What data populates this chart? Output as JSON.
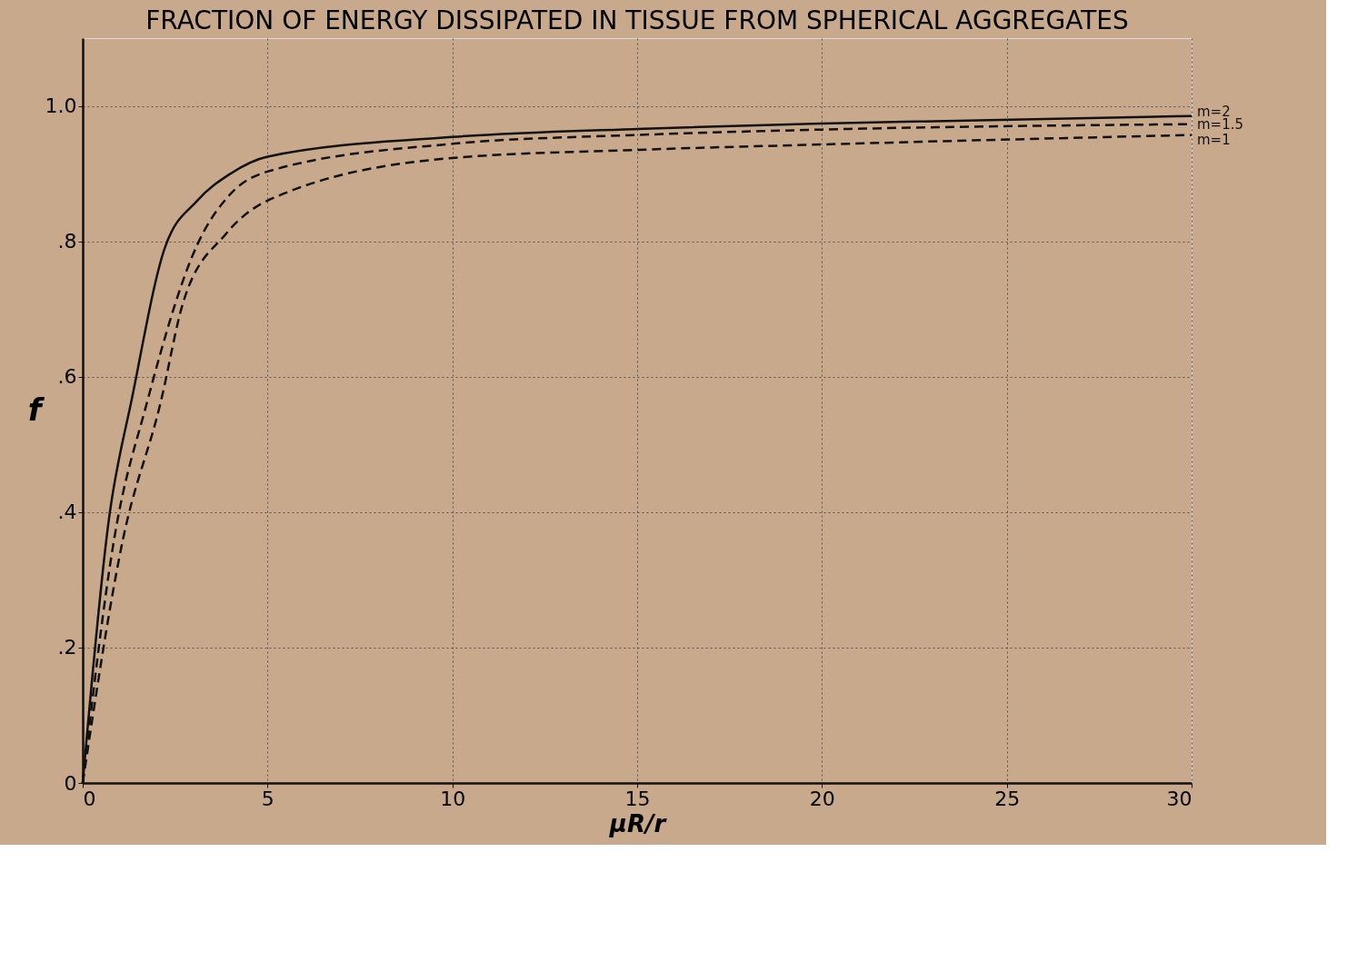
{
  "chart_data": {
    "type": "line",
    "title": "FRACTION OF ENERGY DISSIPATED IN TISSUE FROM SPHERICAL AGGREGATES",
    "xlabel": "μR/r",
    "ylabel": "f",
    "xlim": [
      0,
      30
    ],
    "ylim": [
      0,
      1.1
    ],
    "xticks": [
      0,
      5,
      10,
      15,
      20,
      25,
      30
    ],
    "yticks": [
      0,
      {
        "value": 0.2,
        "label": ".2"
      },
      {
        "value": 0.4,
        "label": ".4"
      },
      {
        "value": 0.6,
        "label": ".6"
      },
      {
        "value": 0.8,
        "label": ".8"
      },
      {
        "value": 1.0,
        "label": "1.0"
      }
    ],
    "grid": true,
    "marker": "none",
    "series": [
      {
        "name": "m=2",
        "color": "#111111",
        "line_style": "solid",
        "x": [
          0,
          0.71,
          1.34,
          2.22,
          3.1,
          4,
          5,
          10,
          15,
          20,
          30
        ],
        "values": [
          0,
          0.39,
          0.57,
          0.79,
          0.86,
          0.9,
          0.925,
          0.954,
          0.966,
          0.974,
          0.985
        ]
      },
      {
        "name": "m=1.5",
        "color": "#111111",
        "line_style": "dashed",
        "x": [
          0,
          0.85,
          1.73,
          3.1,
          4,
          5,
          10,
          15,
          20,
          30
        ],
        "values": [
          0,
          0.36,
          0.56,
          0.795,
          0.87,
          0.903,
          0.944,
          0.957,
          0.965,
          0.973
        ]
      },
      {
        "name": "m=1",
        "color": "#111111",
        "line_style": "dashed",
        "x": [
          0,
          1.09,
          2.1,
          2.72,
          3.86,
          5,
          10,
          15,
          20,
          30
        ],
        "values": [
          0,
          0.36,
          0.56,
          0.71,
          0.81,
          0.86,
          0.923,
          0.935,
          0.943,
          0.957
        ]
      }
    ]
  }
}
